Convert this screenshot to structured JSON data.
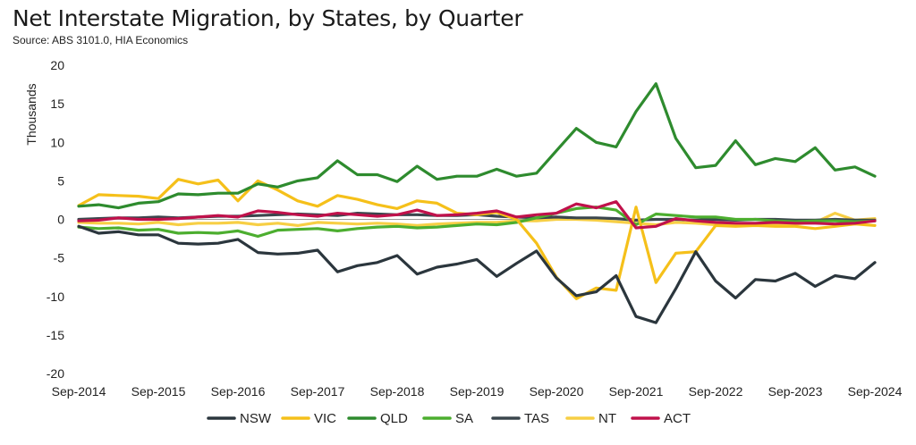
{
  "chart_data": {
    "type": "line",
    "title": "Net Interstate Migration, by States, by Quarter",
    "subtitle": "Source: ABS 3101.0, HIA Economics",
    "ylabel": "Thousands",
    "xlabel": "",
    "ylim": [
      -20,
      20
    ],
    "yticks": [
      20,
      15,
      10,
      5,
      0,
      -5,
      -10,
      -15,
      -20
    ],
    "x_tick_labels": [
      "Sep-2014",
      "Sep-2015",
      "Sep-2016",
      "Sep-2017",
      "Sep-2018",
      "Sep-2019",
      "Sep-2020",
      "Sep-2021",
      "Sep-2022",
      "Sep-2023",
      "Sep-2024"
    ],
    "grid": false,
    "legend_position": "bottom",
    "series": [
      {
        "name": "NSW",
        "color": "#2b363d",
        "values": [
          -0.9,
          -1.8,
          -1.6,
          -2.0,
          -2.0,
          -3.1,
          -3.2,
          -3.1,
          -2.6,
          -4.3,
          -4.5,
          -4.4,
          -4.0,
          -6.8,
          -6.0,
          -5.6,
          -4.7,
          -7.1,
          -6.2,
          -5.8,
          -5.2,
          -7.4,
          -5.7,
          -4.1,
          -7.6,
          -9.9,
          -9.4,
          -7.3,
          -12.6,
          -13.4,
          -9.0,
          -4.2,
          -8.0,
          -10.2,
          -7.8,
          -8.0,
          -7.0,
          -8.7,
          -7.3,
          -7.7,
          -5.6
        ]
      },
      {
        "name": "VIC",
        "color": "#f5c01a",
        "values": [
          1.8,
          3.2,
          3.1,
          3.0,
          2.7,
          5.2,
          4.6,
          5.1,
          2.4,
          5.0,
          3.8,
          2.4,
          1.7,
          3.1,
          2.6,
          1.9,
          1.4,
          2.4,
          2.1,
          0.8,
          0.6,
          0.9,
          0.0,
          -3.1,
          -7.5,
          -10.3,
          -8.9,
          -9.2,
          1.6,
          -8.2,
          -4.4,
          -4.2,
          -0.8,
          -0.9,
          -0.8,
          -0.9,
          -0.9,
          -1.2,
          -0.9,
          -0.6,
          -0.8
        ]
      },
      {
        "name": "QLD",
        "color": "#2e8b2e",
        "values": [
          1.7,
          1.9,
          1.5,
          2.1,
          2.3,
          3.3,
          3.2,
          3.4,
          3.4,
          4.6,
          4.2,
          5.0,
          5.4,
          7.6,
          5.8,
          5.8,
          4.9,
          6.9,
          5.2,
          5.6,
          5.6,
          6.5,
          5.6,
          6.0,
          8.9,
          11.8,
          10.0,
          9.4,
          14.0,
          17.6,
          10.5,
          6.7,
          7.0,
          10.2,
          7.1,
          7.9,
          7.5,
          9.3,
          6.4,
          6.8,
          5.6
        ]
      },
      {
        "name": "SA",
        "color": "#4cae2f",
        "values": [
          -1.0,
          -1.2,
          -1.1,
          -1.4,
          -1.3,
          -1.8,
          -1.7,
          -1.8,
          -1.5,
          -2.2,
          -1.4,
          -1.3,
          -1.2,
          -1.5,
          -1.2,
          -1.0,
          -0.9,
          -1.1,
          -1.0,
          -0.8,
          -0.6,
          -0.7,
          -0.4,
          0.2,
          0.8,
          1.4,
          1.6,
          1.2,
          -0.7,
          0.7,
          0.5,
          0.3,
          0.3,
          0.0,
          0.0,
          -0.2,
          -0.3,
          -0.2,
          -0.2,
          -0.3,
          -0.2
        ]
      },
      {
        "name": "TAS",
        "color": "#3a464d",
        "values": [
          0.0,
          0.1,
          0.2,
          0.2,
          0.3,
          0.2,
          0.3,
          0.4,
          0.4,
          0.5,
          0.6,
          0.7,
          0.6,
          0.5,
          0.8,
          0.7,
          0.6,
          0.6,
          0.5,
          0.5,
          0.6,
          0.4,
          0.3,
          0.2,
          0.3,
          0.2,
          0.2,
          0.1,
          -0.1,
          0.0,
          0.0,
          -0.1,
          0.0,
          -0.1,
          0.0,
          0.0,
          -0.1,
          -0.1,
          0.0,
          -0.1,
          -0.1
        ]
      },
      {
        "name": "NT",
        "color": "#f7cf45",
        "values": [
          -0.4,
          -0.5,
          -0.5,
          -0.6,
          -0.4,
          -0.7,
          -0.5,
          -0.5,
          -0.4,
          -0.7,
          -0.5,
          -0.8,
          -0.4,
          -0.5,
          -0.6,
          -0.5,
          -0.6,
          -0.8,
          -0.6,
          -0.5,
          -0.4,
          -0.4,
          -0.2,
          -0.2,
          0.0,
          0.0,
          -0.1,
          -0.3,
          -0.5,
          -0.7,
          -0.4,
          -0.5,
          -0.7,
          -0.6,
          -0.7,
          -0.7,
          -0.6,
          -0.4,
          0.8,
          -0.1,
          0.1
        ]
      },
      {
        "name": "ACT",
        "color": "#c0114b",
        "values": [
          -0.2,
          -0.1,
          0.2,
          0.0,
          0.0,
          0.1,
          0.3,
          0.5,
          0.3,
          1.1,
          0.9,
          0.6,
          0.4,
          0.8,
          0.6,
          0.4,
          0.6,
          1.2,
          0.5,
          0.6,
          0.8,
          1.1,
          0.3,
          0.6,
          0.8,
          2.0,
          1.5,
          2.3,
          -1.1,
          -0.9,
          0.1,
          -0.2,
          -0.4,
          -0.5,
          -0.5,
          -0.4,
          -0.5,
          -0.5,
          -0.6,
          -0.5,
          -0.2
        ]
      }
    ]
  }
}
